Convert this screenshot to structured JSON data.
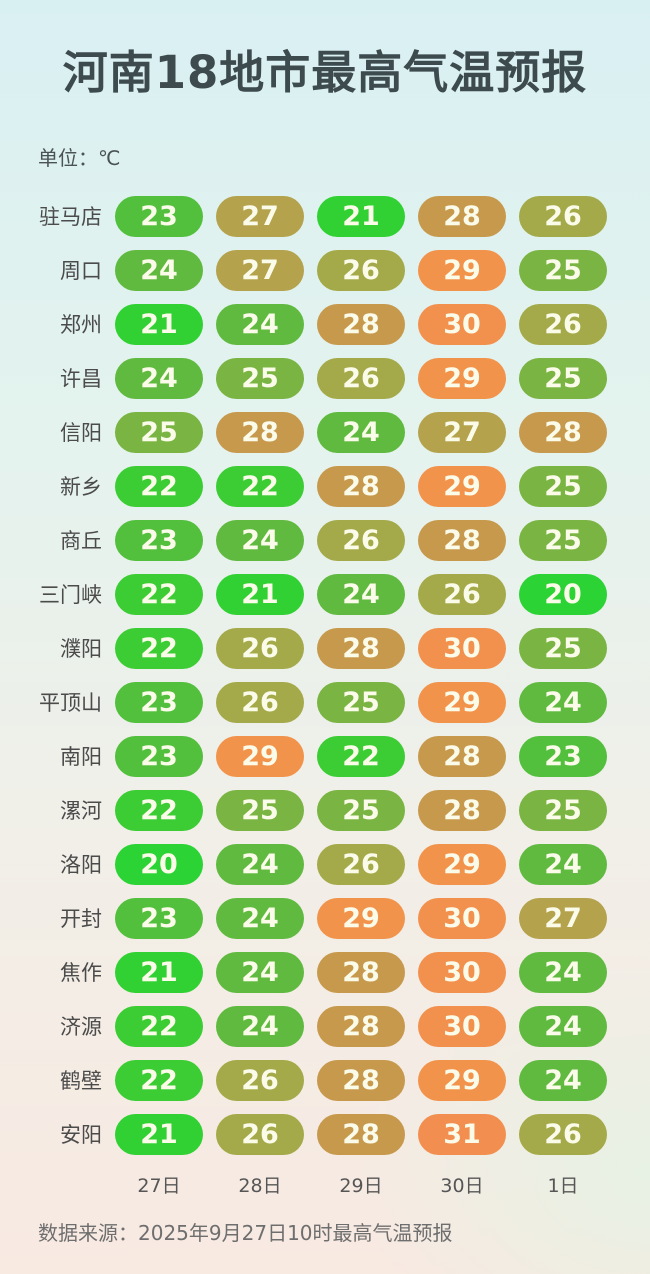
{
  "title": "河南18地市最高气温预报",
  "unit_label": "单位：℃",
  "source": "数据来源：2025年9月27日10时最高气温预报",
  "chart_data": {
    "type": "heatmap",
    "title": "河南18地市最高气温预报",
    "unit": "℃",
    "columns": [
      "27日",
      "28日",
      "29日",
      "30日",
      "1日"
    ],
    "rows": [
      {
        "city": "驻马店",
        "values": [
          23,
          27,
          21,
          28,
          26
        ]
      },
      {
        "city": "周口",
        "values": [
          24,
          27,
          26,
          29,
          25
        ]
      },
      {
        "city": "郑州",
        "values": [
          21,
          24,
          28,
          30,
          26
        ]
      },
      {
        "city": "许昌",
        "values": [
          24,
          25,
          26,
          29,
          25
        ]
      },
      {
        "city": "信阳",
        "values": [
          25,
          28,
          24,
          27,
          28
        ]
      },
      {
        "city": "新乡",
        "values": [
          22,
          22,
          28,
          29,
          25
        ]
      },
      {
        "city": "商丘",
        "values": [
          23,
          24,
          26,
          28,
          25
        ]
      },
      {
        "city": "三门峡",
        "values": [
          22,
          21,
          24,
          26,
          20
        ]
      },
      {
        "city": "濮阳",
        "values": [
          22,
          26,
          28,
          30,
          25
        ]
      },
      {
        "city": "平顶山",
        "values": [
          23,
          26,
          25,
          29,
          24
        ]
      },
      {
        "city": "南阳",
        "values": [
          23,
          29,
          22,
          28,
          23
        ]
      },
      {
        "city": "漯河",
        "values": [
          22,
          25,
          25,
          28,
          25
        ]
      },
      {
        "city": "洛阳",
        "values": [
          20,
          24,
          26,
          29,
          24
        ]
      },
      {
        "city": "开封",
        "values": [
          23,
          24,
          29,
          30,
          27
        ]
      },
      {
        "city": "焦作",
        "values": [
          21,
          24,
          28,
          30,
          24
        ]
      },
      {
        "city": "济源",
        "values": [
          22,
          24,
          28,
          30,
          24
        ]
      },
      {
        "city": "鹤壁",
        "values": [
          22,
          26,
          28,
          29,
          24
        ]
      },
      {
        "city": "安阳",
        "values": [
          21,
          26,
          28,
          31,
          26
        ]
      }
    ],
    "value_colors": {
      "20": "#2bd334",
      "21": "#31d133",
      "22": "#3ccd35",
      "23": "#52bf3d",
      "24": "#60ba40",
      "25": "#7ab443",
      "26": "#a4aa49",
      "27": "#b4a24c",
      "28": "#c7994d",
      "29": "#f2934c",
      "30": "#f2914e",
      "31": "#f28f50"
    },
    "pill_text_color": "#fbfbe9",
    "layout": {
      "legend": "none",
      "grid": false
    },
    "background_top_color": "#d9f0f2",
    "background_bottom_color": "#f8e9e1",
    "title_color": "#3d4a4e"
  }
}
